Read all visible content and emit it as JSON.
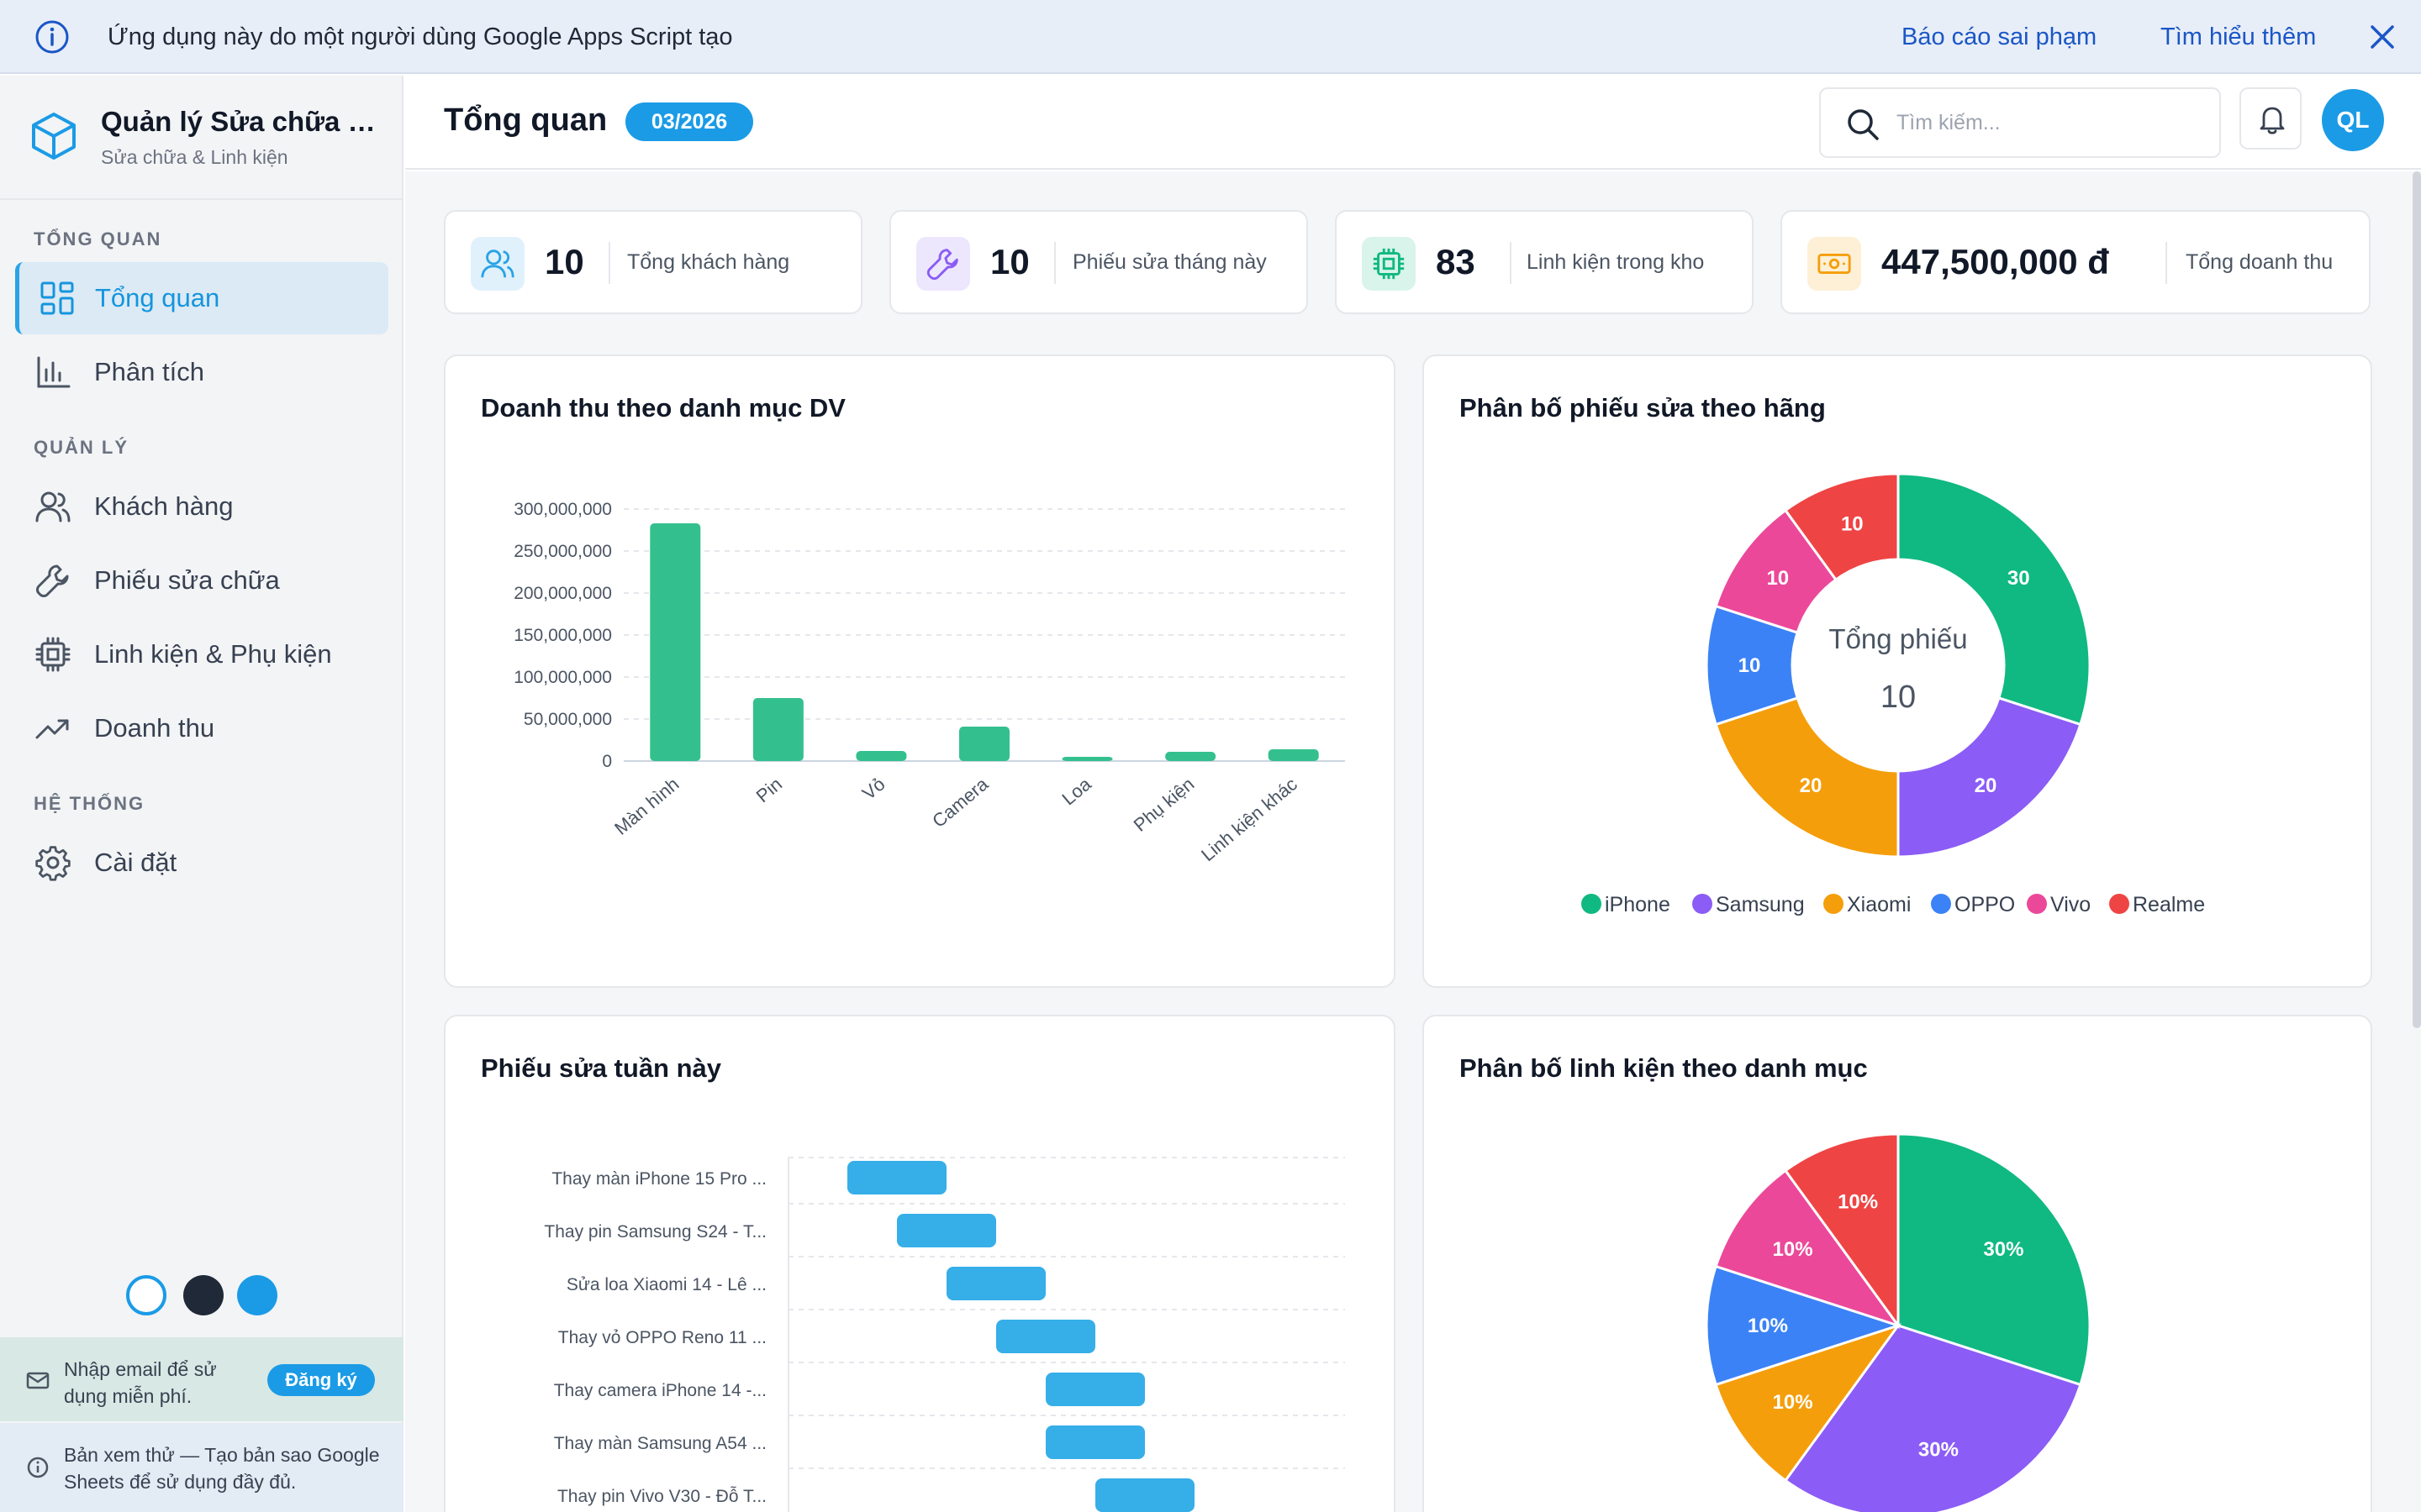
{
  "banner": {
    "message": "Ứng dụng này do một người dùng Google Apps Script tạo",
    "report_link": "Báo cáo sai phạm",
    "learn_link": "Tìm hiểu thêm"
  },
  "brand": {
    "title": "Quản lý Sửa chữa Đi...",
    "subtitle": "Sửa chữa & Linh kiện"
  },
  "sidebar": {
    "sections": [
      {
        "label": "TỔNG QUAN",
        "items": [
          {
            "label": "Tổng quan",
            "icon": "dashboard-icon",
            "active": true
          },
          {
            "label": "Phân tích",
            "icon": "bar-chart-icon"
          }
        ]
      },
      {
        "label": "QUẢN LÝ",
        "items": [
          {
            "label": "Khách hàng",
            "icon": "users-icon"
          },
          {
            "label": "Phiếu sửa chữa",
            "icon": "wrench-icon"
          },
          {
            "label": "Linh kiện & Phụ kiện",
            "icon": "chip-icon"
          },
          {
            "label": "Doanh thu",
            "icon": "trending-up-icon"
          }
        ]
      },
      {
        "label": "HỆ THỐNG",
        "items": [
          {
            "label": "Cài đặt",
            "icon": "gear-icon"
          }
        ]
      }
    ],
    "theme_colors": [
      "#ffffff",
      "#1f2937",
      "#1b9be6"
    ],
    "signup_text": "Nhập email để sử dụng miễn phí.",
    "signup_button": "Đăng ký",
    "trial_text": "Bản xem thử — Tạo bản sao Google Sheets để sử dụng đầy đủ."
  },
  "header": {
    "title": "Tổng quan",
    "month": "03/2026",
    "search_placeholder": "Tìm kiếm...",
    "avatar_initials": "QL"
  },
  "kpis": [
    {
      "value": "10",
      "label": "Tổng khách hàng",
      "icon": "users-icon",
      "color": "#2aa3e6"
    },
    {
      "value": "10",
      "label": "Phiếu sửa tháng này",
      "icon": "wrench-icon",
      "color": "#8b5cf6"
    },
    {
      "value": "83",
      "label": "Linh kiện trong kho",
      "icon": "chip-icon",
      "color": "#10b981"
    },
    {
      "value": "447,500,000 đ",
      "label": "Tổng doanh thu",
      "icon": "money-icon",
      "color": "#f59e0b"
    }
  ],
  "chart_data": [
    {
      "type": "bar",
      "title": "Doanh thu theo danh mục DV",
      "categories": [
        "Màn hình",
        "Pin",
        "Vỏ",
        "Camera",
        "Loa",
        "Phụ kiện",
        "Linh kiện khác"
      ],
      "values": [
        283000000,
        75000000,
        12000000,
        41000000,
        5000000,
        11000000,
        14000000
      ],
      "yticks": [
        "300,000,000",
        "250,000,000",
        "200,000,000",
        "150,000,000",
        "100,000,000",
        "50,000,000",
        "0"
      ],
      "ylim": [
        0,
        300000000
      ],
      "color": "#34c08e"
    },
    {
      "type": "pie",
      "title": "Phân bố phiếu sửa theo hãng",
      "donut": true,
      "center_label": "Tổng phiếu",
      "center_value": "10",
      "labels": [
        "iPhone",
        "Samsung",
        "Xiaomi",
        "OPPO",
        "Vivo",
        "Realme"
      ],
      "values": [
        30,
        20,
        20,
        10,
        10,
        10
      ],
      "colors": [
        "#10b981",
        "#8b5cf6",
        "#f59e0b",
        "#3b82f6",
        "#ec4899",
        "#ef4444"
      ],
      "legend": "bottom"
    },
    {
      "type": "bar",
      "title": "Phiếu sửa tuần này",
      "orientation": "horizontal-gantt",
      "categories": [
        "Thay màn iPhone 15 Pro ...",
        "Thay pin Samsung S24 - T...",
        "Sửa loa Xiaomi 14 - Lê ...",
        "Thay vỏ OPPO Reno 11 ...",
        "Thay camera iPhone 14 -...",
        "Thay màn Samsung A54 ...",
        "Thay pin Vivo V30 - Đỗ T..."
      ],
      "start_day": [
        1,
        2,
        3,
        4,
        5,
        5,
        6
      ],
      "end_day": [
        3,
        4,
        5,
        6,
        7,
        7,
        8
      ],
      "color": "#36aee8"
    },
    {
      "type": "pie",
      "title": "Phân bố linh kiện theo danh mục",
      "labels": [
        "30%",
        "30%",
        "10%",
        "10%",
        "10%",
        "10%"
      ],
      "values": [
        30,
        30,
        10,
        10,
        10,
        10
      ],
      "colors": [
        "#10b981",
        "#8b5cf6",
        "#f59e0b",
        "#3b82f6",
        "#ec4899",
        "#ef4444"
      ]
    }
  ]
}
